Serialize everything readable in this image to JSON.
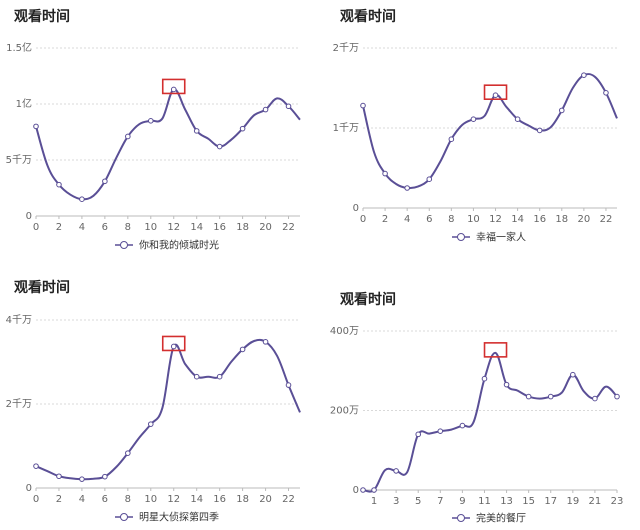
{
  "colors": {
    "line": "#5a4f96",
    "highlight": "#d32f2f"
  },
  "chart_data": [
    {
      "type": "line",
      "title": "观看时间",
      "x": [
        0,
        1,
        2,
        3,
        4,
        5,
        6,
        7,
        8,
        9,
        10,
        11,
        12,
        13,
        14,
        15,
        16,
        17,
        18,
        19,
        20,
        21,
        22,
        23
      ],
      "x_ticks": [
        0,
        2,
        4,
        6,
        8,
        10,
        12,
        14,
        16,
        18,
        20,
        22
      ],
      "y_ticks": [
        {
          "v": 0,
          "label": "0"
        },
        {
          "v": 50000000,
          "label": "5千万"
        },
        {
          "v": 100000000,
          "label": "1亿"
        },
        {
          "v": 150000000,
          "label": "1.5亿"
        }
      ],
      "ylim": [
        0,
        150000000
      ],
      "series": [
        {
          "name": "你和我的倾城时光",
          "values": [
            80000000,
            45000000,
            28000000,
            19000000,
            15000000,
            18000000,
            31000000,
            52000000,
            71000000,
            82000000,
            85000000,
            87000000,
            113000000,
            95000000,
            76000000,
            69000000,
            62000000,
            68000000,
            78000000,
            90000000,
            95000000,
            105000000,
            98000000,
            86000000
          ]
        }
      ],
      "highlight_x": 12,
      "legend": "bottom-center",
      "grid": true
    },
    {
      "type": "line",
      "title": "观看时间",
      "x": [
        0,
        1,
        2,
        3,
        4,
        5,
        6,
        7,
        8,
        9,
        10,
        11,
        12,
        13,
        14,
        15,
        16,
        17,
        18,
        19,
        20,
        21,
        22,
        23
      ],
      "x_ticks": [
        0,
        2,
        4,
        6,
        8,
        10,
        12,
        14,
        16,
        18,
        20,
        22
      ],
      "y_ticks": [
        {
          "v": 0,
          "label": "0"
        },
        {
          "v": 10000000,
          "label": "1千万"
        },
        {
          "v": 20000000,
          "label": "2千万"
        }
      ],
      "ylim": [
        0,
        20000000
      ],
      "series": [
        {
          "name": "幸福一家人",
          "values": [
            12800000,
            7000000,
            4300000,
            3000000,
            2500000,
            2700000,
            3600000,
            5800000,
            8600000,
            10400000,
            11100000,
            11500000,
            14100000,
            12600000,
            11100000,
            10300000,
            9700000,
            10100000,
            12200000,
            15000000,
            16600000,
            16400000,
            14400000,
            11200000
          ]
        }
      ],
      "highlight_x": 12,
      "legend": "bottom-center",
      "grid": true
    },
    {
      "type": "line",
      "title": "观看时间",
      "x": [
        0,
        1,
        2,
        3,
        4,
        5,
        6,
        7,
        8,
        9,
        10,
        11,
        12,
        13,
        14,
        15,
        16,
        17,
        18,
        19,
        20,
        21,
        22,
        23
      ],
      "x_ticks": [
        0,
        2,
        4,
        6,
        8,
        10,
        12,
        14,
        16,
        18,
        20,
        22
      ],
      "y_ticks": [
        {
          "v": 0,
          "label": "0"
        },
        {
          "v": 20000000,
          "label": "2千万"
        },
        {
          "v": 40000000,
          "label": "4千万"
        }
      ],
      "ylim": [
        0,
        40000000
      ],
      "series": [
        {
          "name": "明星大侦探第四季",
          "values": [
            5200000,
            4000000,
            2800000,
            2300000,
            2100000,
            2200000,
            2700000,
            5000000,
            8300000,
            12000000,
            15200000,
            19000000,
            33700000,
            29500000,
            26500000,
            26500000,
            26500000,
            30000000,
            33000000,
            35000000,
            34800000,
            31500000,
            24500000,
            18000000
          ]
        }
      ],
      "highlight_x": 12,
      "legend": "bottom-center",
      "grid": true
    },
    {
      "type": "line",
      "title": "观看时间",
      "x": [
        0,
        1,
        2,
        3,
        4,
        5,
        6,
        7,
        8,
        9,
        10,
        11,
        12,
        13,
        14,
        15,
        16,
        17,
        18,
        19,
        20,
        21,
        22,
        23
      ],
      "x_ticks": [
        1,
        3,
        5,
        7,
        9,
        11,
        13,
        15,
        17,
        19,
        21,
        23
      ],
      "y_ticks": [
        {
          "v": 0,
          "label": "0"
        },
        {
          "v": 2000000,
          "label": "200万"
        },
        {
          "v": 4000000,
          "label": "400万"
        }
      ],
      "ylim": [
        0,
        4000000
      ],
      "series": [
        {
          "name": "完美的餐厅",
          "values": [
            0,
            0,
            500000,
            480000,
            450000,
            1400000,
            1420000,
            1480000,
            1520000,
            1620000,
            1700000,
            2800000,
            3450000,
            2650000,
            2500000,
            2350000,
            2300000,
            2350000,
            2450000,
            2900000,
            2480000,
            2300000,
            2600000,
            2350000
          ]
        }
      ],
      "highlight_x": 12,
      "legend": "bottom-center",
      "grid": true
    }
  ]
}
